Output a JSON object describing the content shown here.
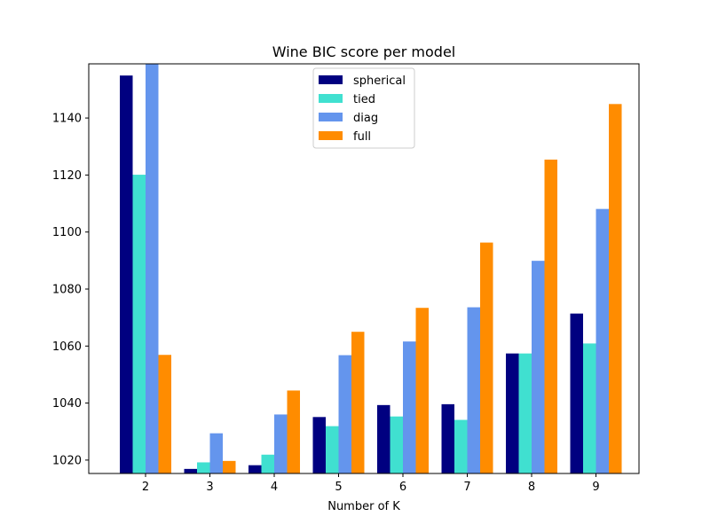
{
  "chart_data": {
    "type": "bar",
    "title": "Wine BIC score per model",
    "xlabel": "Number of K",
    "ylabel": "",
    "categories": [
      "2",
      "3",
      "4",
      "5",
      "6",
      "7",
      "8",
      "9"
    ],
    "ylim": [
      1015.3,
      1159.0
    ],
    "yticks": [
      1020,
      1040,
      1060,
      1080,
      1100,
      1120,
      1140
    ],
    "legend_position": "upper center",
    "grid": false,
    "series": [
      {
        "name": "spherical",
        "color": "#000080",
        "values": [
          1154.9,
          1016.9,
          1018.2,
          1035.1,
          1039.3,
          1039.6,
          1057.4,
          1071.4
        ]
      },
      {
        "name": "tied",
        "color": "#40e0d0",
        "values": [
          1120.1,
          1019.2,
          1021.9,
          1031.9,
          1035.3,
          1034.1,
          1057.4,
          1060.9
        ]
      },
      {
        "name": "diag",
        "color": "#6495ed",
        "values": [
          1159.0,
          1029.4,
          1036.0,
          1056.8,
          1061.6,
          1073.6,
          1089.9,
          1108.1
        ]
      },
      {
        "name": "full",
        "color": "#ff8c00",
        "values": [
          1056.9,
          1019.7,
          1044.4,
          1065.0,
          1073.4,
          1096.3,
          1125.4,
          1144.9
        ]
      }
    ]
  }
}
